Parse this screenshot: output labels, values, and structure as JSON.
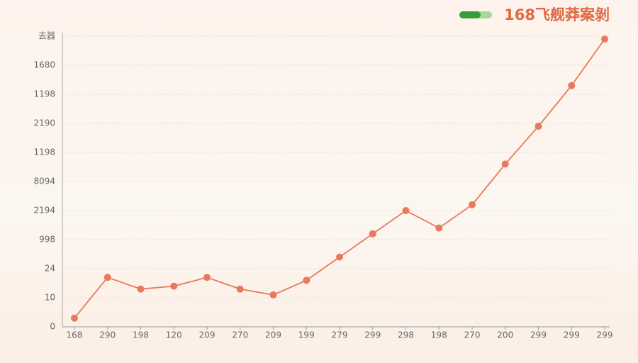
{
  "chart_data": {
    "type": "line",
    "title": "168飞舰莽案剝",
    "categories": [
      "168",
      "290",
      "198",
      "120",
      "209",
      "270",
      "209",
      "199",
      "279",
      "299",
      "298",
      "198",
      "270",
      "200",
      "299",
      "299",
      "299"
    ],
    "series": [
      {
        "name": "168",
        "color": "#e8795a",
        "values": [
          0.3,
          1.7,
          1.3,
          1.4,
          1.7,
          1.3,
          1.1,
          1.6,
          2.4,
          3.2,
          4.0,
          3.4,
          4.2,
          5.6,
          6.9,
          8.3,
          9.9
        ]
      }
    ],
    "ylim": [
      0,
      10
    ],
    "yticks": [
      0,
      {
        "value": 1,
        "label": "10"
      },
      {
        "value": 2,
        "label": "24"
      },
      {
        "value": 3,
        "label": "998"
      },
      {
        "value": 4,
        "label": "2194"
      },
      {
        "value": 5,
        "label": "8094"
      },
      {
        "value": 6,
        "label": "1198"
      },
      {
        "value": 7,
        "label": "2190"
      },
      {
        "value": 8,
        "label": "1198"
      },
      {
        "value": 9,
        "label": "1680"
      },
      {
        "value": 10,
        "label": "去器"
      }
    ],
    "grid": true
  }
}
